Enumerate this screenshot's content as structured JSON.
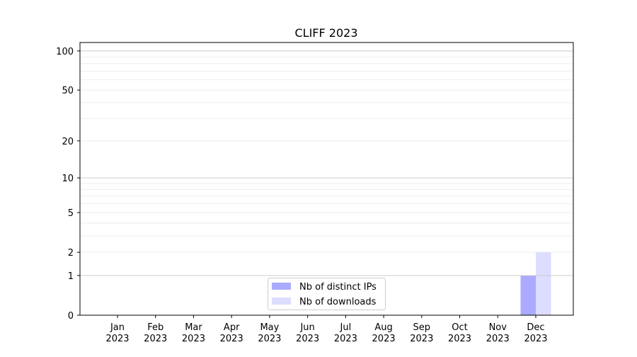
{
  "chart_data": {
    "type": "bar",
    "title": "CLIFF 2023",
    "xlabel": "",
    "ylabel": "",
    "yscale": "log(1+y)",
    "ylim": [
      0,
      116
    ],
    "yticks": [
      0,
      1,
      2,
      5,
      10,
      20,
      50,
      100
    ],
    "grid": true,
    "legend_placement": "lower-center",
    "categories": [
      "Jan\n2023",
      "Feb\n2023",
      "Mar\n2023",
      "Apr\n2023",
      "May\n2023",
      "Jun\n2023",
      "Jul\n2023",
      "Aug\n2023",
      "Sep\n2023",
      "Oct\n2023",
      "Nov\n2023",
      "Dec\n2023"
    ],
    "series": [
      {
        "name": "Nb of distinct IPs",
        "color": "#aaaaff",
        "values": [
          0,
          0,
          0,
          0,
          0,
          0,
          0,
          0,
          0,
          0,
          0,
          1
        ]
      },
      {
        "name": "Nb of downloads",
        "color": "#ddddff",
        "values": [
          0,
          0,
          0,
          0,
          0,
          0,
          0,
          0,
          0,
          0,
          0,
          2
        ]
      }
    ]
  }
}
